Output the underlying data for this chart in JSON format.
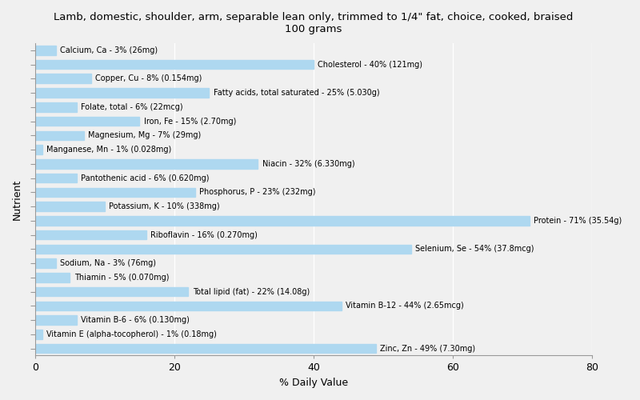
{
  "title": "Lamb, domestic, shoulder, arm, separable lean only, trimmed to 1/4\" fat, choice, cooked, braised\n100 grams",
  "xlabel": "% Daily Value",
  "ylabel": "Nutrient",
  "xlim": [
    0,
    80
  ],
  "bar_color": "#aed8f0",
  "background_color": "#f0f0f0",
  "nutrients": [
    {
      "label": "Calcium, Ca - 3% (26mg)",
      "value": 3
    },
    {
      "label": "Cholesterol - 40% (121mg)",
      "value": 40
    },
    {
      "label": "Copper, Cu - 8% (0.154mg)",
      "value": 8
    },
    {
      "label": "Fatty acids, total saturated - 25% (5.030g)",
      "value": 25
    },
    {
      "label": "Folate, total - 6% (22mcg)",
      "value": 6
    },
    {
      "label": "Iron, Fe - 15% (2.70mg)",
      "value": 15
    },
    {
      "label": "Magnesium, Mg - 7% (29mg)",
      "value": 7
    },
    {
      "label": "Manganese, Mn - 1% (0.028mg)",
      "value": 1
    },
    {
      "label": "Niacin - 32% (6.330mg)",
      "value": 32
    },
    {
      "label": "Pantothenic acid - 6% (0.620mg)",
      "value": 6
    },
    {
      "label": "Phosphorus, P - 23% (232mg)",
      "value": 23
    },
    {
      "label": "Potassium, K - 10% (338mg)",
      "value": 10
    },
    {
      "label": "Protein - 71% (35.54g)",
      "value": 71
    },
    {
      "label": "Riboflavin - 16% (0.270mg)",
      "value": 16
    },
    {
      "label": "Selenium, Se - 54% (37.8mcg)",
      "value": 54
    },
    {
      "label": "Sodium, Na - 3% (76mg)",
      "value": 3
    },
    {
      "label": "Thiamin - 5% (0.070mg)",
      "value": 5
    },
    {
      "label": "Total lipid (fat) - 22% (14.08g)",
      "value": 22
    },
    {
      "label": "Vitamin B-12 - 44% (2.65mcg)",
      "value": 44
    },
    {
      "label": "Vitamin B-6 - 6% (0.130mg)",
      "value": 6
    },
    {
      "label": "Vitamin E (alpha-tocopherol) - 1% (0.18mg)",
      "value": 1
    },
    {
      "label": "Zinc, Zn - 49% (7.30mg)",
      "value": 49
    }
  ]
}
